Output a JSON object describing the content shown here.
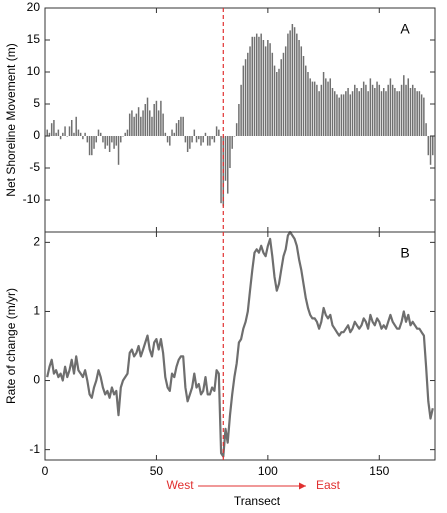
{
  "chart_data": [
    {
      "type": "bar",
      "panel_label": "A",
      "y_label": "Net Shoreline Movement (m)",
      "color": "#707070",
      "xlim": [
        0,
        175
      ],
      "ylim": [
        -15,
        20
      ],
      "yticks": [
        -10,
        -5,
        0,
        5,
        10,
        15,
        20
      ],
      "x": [
        1,
        2,
        3,
        4,
        5,
        6,
        7,
        8,
        9,
        10,
        11,
        12,
        13,
        14,
        15,
        16,
        17,
        18,
        19,
        20,
        21,
        22,
        23,
        24,
        25,
        26,
        27,
        28,
        29,
        30,
        31,
        32,
        33,
        34,
        35,
        36,
        37,
        38,
        39,
        40,
        41,
        42,
        43,
        44,
        45,
        46,
        47,
        48,
        49,
        50,
        51,
        52,
        53,
        54,
        55,
        56,
        57,
        58,
        59,
        60,
        61,
        62,
        63,
        64,
        65,
        66,
        67,
        68,
        69,
        70,
        71,
        72,
        73,
        74,
        75,
        76,
        77,
        78,
        79,
        80,
        81,
        82,
        83,
        84,
        85,
        86,
        87,
        88,
        89,
        90,
        91,
        92,
        93,
        94,
        95,
        96,
        97,
        98,
        99,
        100,
        101,
        102,
        103,
        104,
        105,
        106,
        107,
        108,
        109,
        110,
        111,
        112,
        113,
        114,
        115,
        116,
        117,
        118,
        119,
        120,
        121,
        122,
        123,
        124,
        125,
        126,
        127,
        128,
        129,
        130,
        131,
        132,
        133,
        134,
        135,
        136,
        137,
        138,
        139,
        140,
        141,
        142,
        143,
        144,
        145,
        146,
        147,
        148,
        149,
        150,
        151,
        152,
        153,
        154,
        155,
        156,
        157,
        158,
        159,
        160,
        161,
        162,
        163,
        164,
        165,
        166,
        167,
        168,
        169,
        170,
        171,
        172,
        173,
        174
      ],
      "values": [
        1,
        0.5,
        2,
        2.5,
        0.5,
        1,
        -0.5,
        0.5,
        1.5,
        0,
        1.5,
        2.5,
        0.5,
        3,
        1,
        0.5,
        -0.5,
        0.5,
        -1,
        -3,
        -3,
        -2,
        -1,
        1,
        0.5,
        -1,
        -2,
        -1.5,
        -2.5,
        -1,
        -2,
        -1.5,
        -4.5,
        -1,
        0,
        0.5,
        1,
        3.5,
        4,
        3,
        3.5,
        4.5,
        3,
        4,
        5,
        6,
        4,
        3,
        5,
        5.5,
        4,
        5.5,
        3.5,
        0.5,
        -1,
        -1.5,
        1,
        0.5,
        2,
        2.5,
        3,
        3,
        -1,
        -2.5,
        -2,
        -1,
        1,
        -1,
        -0.5,
        -1.5,
        -1,
        0.5,
        -1.5,
        -1.5,
        -0.5,
        -1,
        1.5,
        1,
        -10.5,
        -11,
        -7,
        -9,
        -5,
        -2,
        0,
        2,
        5,
        8,
        11,
        12,
        13,
        14,
        15.5,
        15.5,
        16,
        15.5,
        16,
        15,
        14,
        15,
        14.5,
        13,
        11,
        10,
        10.5,
        12,
        13,
        14,
        16,
        16.5,
        17.5,
        17,
        16,
        15,
        14,
        12.5,
        11,
        10,
        9,
        8.5,
        8.5,
        8,
        7,
        8,
        10,
        9,
        8.5,
        9,
        7.5,
        7,
        6.5,
        6,
        6.5,
        6.5,
        7,
        7.5,
        6.5,
        7,
        8,
        7.5,
        7,
        7.5,
        8.5,
        8,
        7,
        9,
        8,
        7.5,
        8.5,
        8,
        7,
        7.5,
        7,
        8,
        9,
        8,
        7.5,
        7,
        7,
        8,
        9.5,
        8,
        9,
        7.5,
        8,
        7.5,
        7,
        7,
        6.5,
        6,
        2,
        -3,
        -4.5,
        -3
      ]
    },
    {
      "type": "line",
      "panel_label": "B",
      "y_label": "Rate of change (m/yr)",
      "x_label": "Transect",
      "color": "#6e6e6e",
      "xlim": [
        0,
        175
      ],
      "xticks": [
        0,
        50,
        100,
        150
      ],
      "ylim": [
        -1.15,
        2.15
      ],
      "yticks": [
        -1,
        0,
        1,
        2
      ],
      "x": [
        1,
        2,
        3,
        4,
        5,
        6,
        7,
        8,
        9,
        10,
        11,
        12,
        13,
        14,
        15,
        16,
        17,
        18,
        19,
        20,
        21,
        22,
        23,
        24,
        25,
        26,
        27,
        28,
        29,
        30,
        31,
        32,
        33,
        34,
        35,
        36,
        37,
        38,
        39,
        40,
        41,
        42,
        43,
        44,
        45,
        46,
        47,
        48,
        49,
        50,
        51,
        52,
        53,
        54,
        55,
        56,
        57,
        58,
        59,
        60,
        61,
        62,
        63,
        64,
        65,
        66,
        67,
        68,
        69,
        70,
        71,
        72,
        73,
        74,
        75,
        76,
        77,
        78,
        79,
        80,
        81,
        82,
        83,
        84,
        85,
        86,
        87,
        88,
        89,
        90,
        91,
        92,
        93,
        94,
        95,
        96,
        97,
        98,
        99,
        100,
        101,
        102,
        103,
        104,
        105,
        106,
        107,
        108,
        109,
        110,
        111,
        112,
        113,
        114,
        115,
        116,
        117,
        118,
        119,
        120,
        121,
        122,
        123,
        124,
        125,
        126,
        127,
        128,
        129,
        130,
        131,
        132,
        133,
        134,
        135,
        136,
        137,
        138,
        139,
        140,
        141,
        142,
        143,
        144,
        145,
        146,
        147,
        148,
        149,
        150,
        151,
        152,
        153,
        154,
        155,
        156,
        157,
        158,
        159,
        160,
        161,
        162,
        163,
        164,
        165,
        166,
        167,
        168,
        169,
        170,
        171,
        172,
        173,
        174
      ],
      "values": [
        0.05,
        0.2,
        0.3,
        0.1,
        0.15,
        0.05,
        0.1,
        0,
        0.2,
        0.05,
        0.15,
        0.3,
        0.1,
        0.35,
        0.15,
        0.1,
        0.05,
        0.15,
        0,
        -0.2,
        -0.25,
        -0.1,
        0,
        0.15,
        0.05,
        -0.1,
        -0.2,
        -0.15,
        -0.25,
        -0.1,
        -0.2,
        -0.15,
        -0.5,
        -0.1,
        0,
        0.05,
        0.1,
        0.4,
        0.45,
        0.35,
        0.4,
        0.5,
        0.35,
        0.45,
        0.55,
        0.65,
        0.45,
        0.35,
        0.55,
        0.6,
        0.45,
        0.6,
        0.4,
        0.05,
        -0.1,
        -0.15,
        0.1,
        0.05,
        0.2,
        0.3,
        0.35,
        0.35,
        -0.1,
        -0.3,
        -0.2,
        -0.1,
        0.1,
        -0.1,
        -0.05,
        -0.2,
        -0.15,
        0.05,
        -0.2,
        -0.2,
        -0.1,
        -0.15,
        0.15,
        0.1,
        -1.05,
        -1.1,
        -0.7,
        -0.9,
        -0.5,
        -0.2,
        0.05,
        0.25,
        0.55,
        0.6,
        0.75,
        0.85,
        1,
        1.3,
        1.6,
        1.85,
        1.9,
        1.85,
        1.95,
        1.85,
        1.8,
        1.95,
        2.05,
        1.8,
        1.5,
        1.3,
        1.4,
        1.6,
        1.8,
        1.9,
        2.1,
        2.15,
        2.1,
        2.05,
        1.95,
        1.75,
        1.6,
        1.4,
        1.2,
        1.05,
        0.95,
        0.9,
        0.9,
        0.85,
        0.75,
        0.85,
        1.05,
        0.95,
        0.9,
        0.95,
        0.8,
        0.75,
        0.7,
        0.65,
        0.7,
        0.7,
        0.75,
        0.8,
        0.7,
        0.75,
        0.85,
        0.8,
        0.75,
        0.8,
        0.9,
        0.85,
        0.75,
        0.95,
        0.85,
        0.8,
        0.9,
        0.85,
        0.75,
        0.8,
        0.75,
        0.85,
        0.95,
        0.85,
        0.8,
        0.75,
        0.75,
        0.85,
        1,
        0.85,
        0.95,
        0.8,
        0.85,
        0.8,
        0.75,
        0.75,
        0.7,
        0.65,
        0.2,
        -0.3,
        -0.55,
        -0.4
      ]
    }
  ],
  "divider": {
    "x": 80,
    "color": "#e03030"
  },
  "direction": {
    "west": "West",
    "east": "East"
  }
}
